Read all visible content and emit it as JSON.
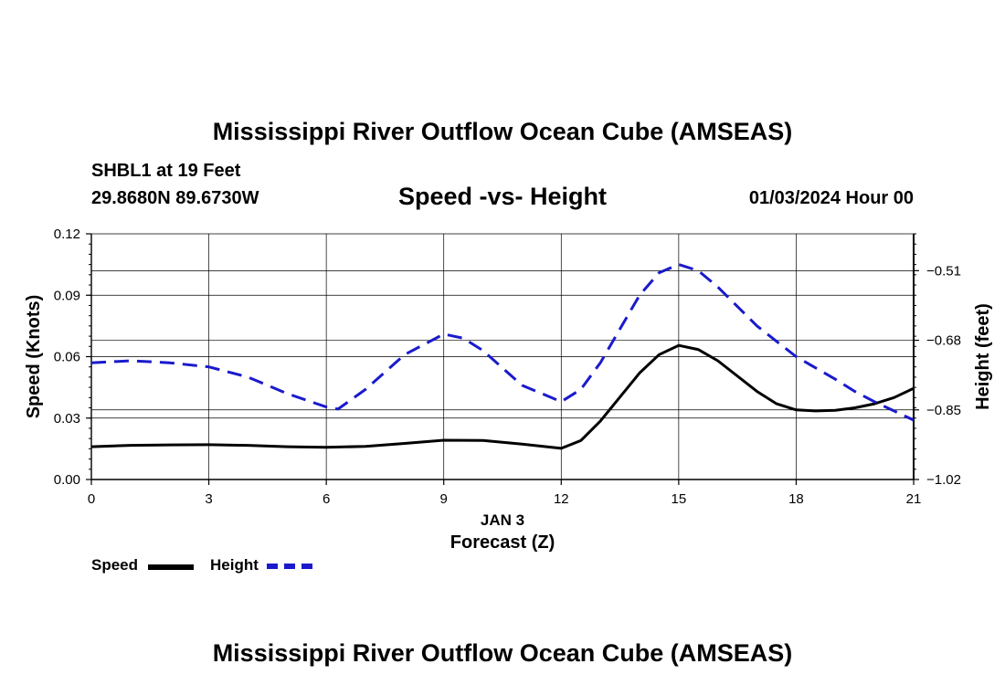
{
  "title": "Mississippi River Outflow Ocean Cube (AMSEAS)",
  "station": "SHBL1 at 19 Feet",
  "coords": "29.8680N  89.6730W",
  "subtitle": "Speed -vs- Height",
  "datetime": "01/03/2024 Hour 00",
  "footer_title": "Mississippi River Outflow Ocean Cube (AMSEAS)",
  "legend": {
    "speed_label": "Speed",
    "height_label": "Height"
  },
  "colors": {
    "speed": "#000000",
    "height": "#1a1acc",
    "grid": "#000000"
  },
  "chart_data": {
    "type": "line",
    "title": "Speed -vs- Height",
    "xlabel": "Forecast (Z)",
    "xlabel_date": "JAN 3",
    "ylabel": "Speed (Knots)",
    "y2label": "Height (feet)",
    "xlim": [
      0,
      21
    ],
    "ylim": [
      0,
      0.12
    ],
    "y2lim": [
      -1.02,
      -0.42
    ],
    "xticks": [
      0,
      3,
      6,
      9,
      12,
      15,
      18,
      21
    ],
    "xtick_labels": [
      "0",
      "3",
      "6",
      "9",
      "12",
      "15",
      "18",
      "21"
    ],
    "yticks": [
      0,
      0.03,
      0.06,
      0.09,
      0.12
    ],
    "ytick_labels": [
      "0.00",
      "0.03",
      "0.06",
      "0.09",
      "0.12"
    ],
    "y2ticks": [
      -1.02,
      -0.85,
      -0.68,
      -0.51
    ],
    "y2tick_labels": [
      "-1.02",
      "-0.85",
      "-0.68",
      "-0.51"
    ],
    "grid": true,
    "series": [
      {
        "name": "Speed",
        "axis": "left",
        "style": "solid",
        "x": [
          0,
          1,
          2,
          3,
          4,
          5,
          6,
          7,
          8,
          9,
          10,
          11,
          12,
          12.5,
          13,
          14,
          14.5,
          15,
          15.5,
          16,
          17,
          17.5,
          18,
          18.5,
          19,
          19.5,
          20,
          20.5,
          21
        ],
        "values": [
          0.016,
          0.0167,
          0.0169,
          0.017,
          0.0167,
          0.016,
          0.0157,
          0.0162,
          0.0176,
          0.0192,
          0.0191,
          0.0173,
          0.0152,
          0.019,
          0.0285,
          0.052,
          0.061,
          0.0655,
          0.0635,
          0.058,
          0.043,
          0.037,
          0.034,
          0.0335,
          0.0338,
          0.035,
          0.037,
          0.04,
          0.0445
        ]
      },
      {
        "name": "Height",
        "axis": "right",
        "style": "dashed",
        "x": [
          0,
          1,
          2,
          3,
          4,
          5,
          6,
          6.3,
          7,
          8,
          9,
          9.5,
          10,
          11,
          12,
          12.5,
          13,
          14,
          14.5,
          15,
          15.5,
          16,
          17,
          18,
          19,
          19.5,
          20,
          21
        ],
        "values": [
          -0.735,
          -0.73,
          -0.735,
          -0.745,
          -0.77,
          -0.81,
          -0.843,
          -0.848,
          -0.8,
          -0.715,
          -0.665,
          -0.675,
          -0.705,
          -0.79,
          -0.83,
          -0.8,
          -0.735,
          -0.57,
          -0.515,
          -0.495,
          -0.51,
          -0.55,
          -0.645,
          -0.72,
          -0.775,
          -0.805,
          -0.83,
          -0.875
        ]
      }
    ]
  }
}
